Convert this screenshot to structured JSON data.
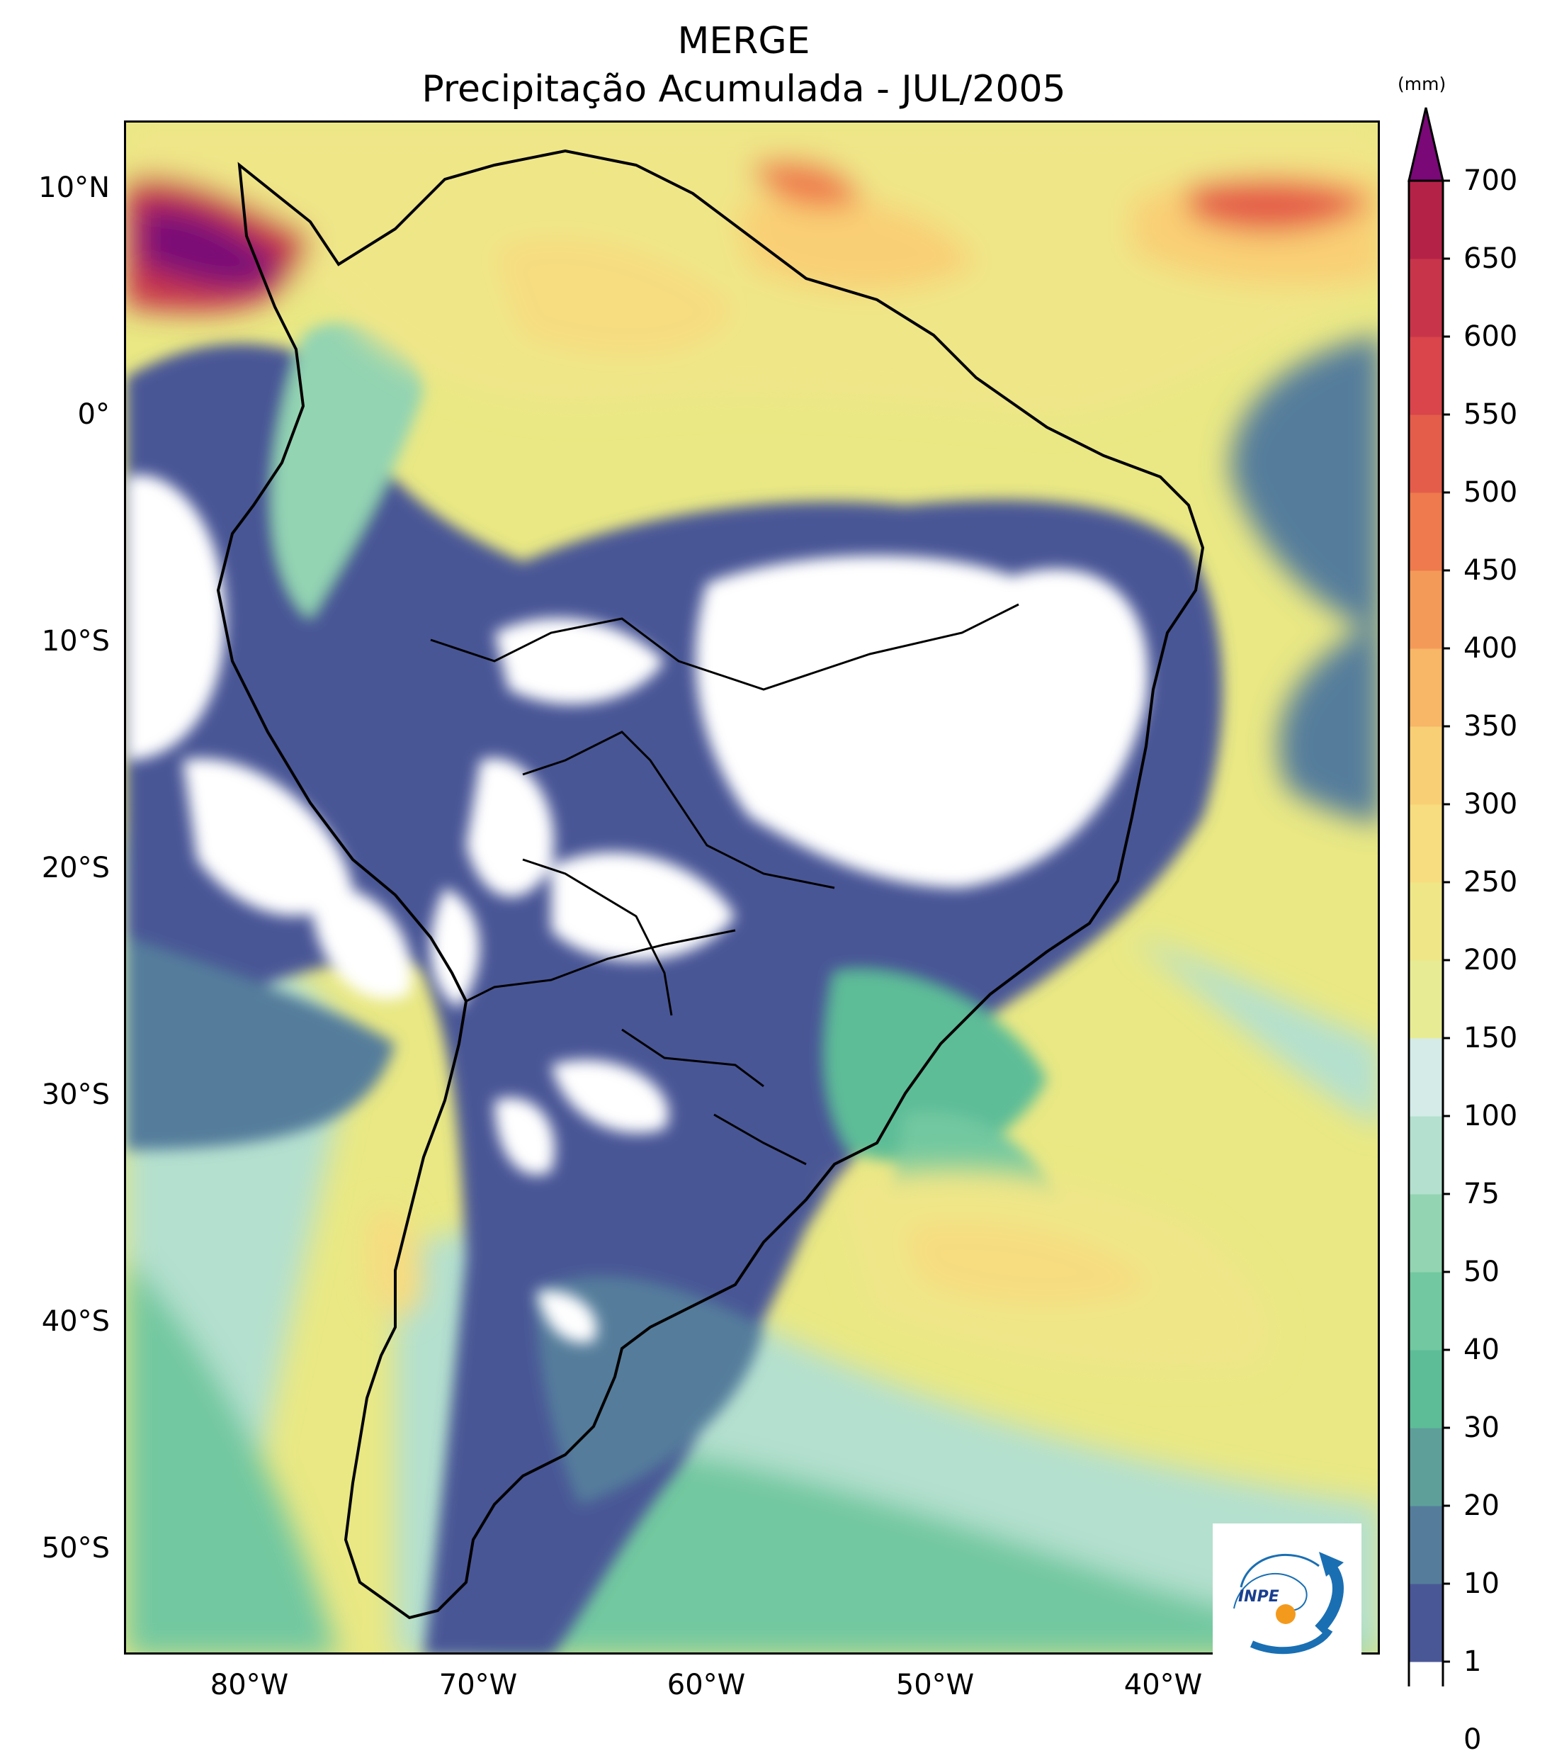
{
  "title": {
    "line1": "MERGE",
    "line2": "Precipitação Acumulada - JUL/2005"
  },
  "axes": {
    "lat_ticks": [
      "10°N",
      "0°",
      "10°S",
      "20°S",
      "30°S",
      "40°S",
      "50°S"
    ],
    "lon_ticks": [
      "80°W",
      "70°W",
      "60°W",
      "50°W",
      "40°W"
    ]
  },
  "colorbar": {
    "unit": "(mm)",
    "levels": [
      "0",
      "1",
      "10",
      "20",
      "30",
      "40",
      "50",
      "75",
      "100",
      "150",
      "200",
      "250",
      "300",
      "350",
      "400",
      "450",
      "500",
      "550",
      "600",
      "650",
      "700"
    ],
    "colors": [
      "#ffffff",
      "#4a5796",
      "#557d9b",
      "#5e9f9a",
      "#5dbd97",
      "#72c8a0",
      "#93d4b2",
      "#b4e0cf",
      "#d4ebe8",
      "#e7ec94",
      "#efe688",
      "#f7dc80",
      "#f9cf75",
      "#f8b667",
      "#f49a58",
      "#ee7a4d",
      "#e45d4a",
      "#d9454b",
      "#c8354a",
      "#b52248",
      "#7a0877"
    ]
  },
  "logo": {
    "text": "INPE"
  },
  "map_colors": {
    "ocean_base": "#e9e884",
    "coast_green": "#93d4b2",
    "dry_blue": "#4a5796",
    "no_rain": "#ffffff",
    "wet_orange": "#f9cf75",
    "very_wet": "#c8354a",
    "extreme": "#7a0877"
  }
}
